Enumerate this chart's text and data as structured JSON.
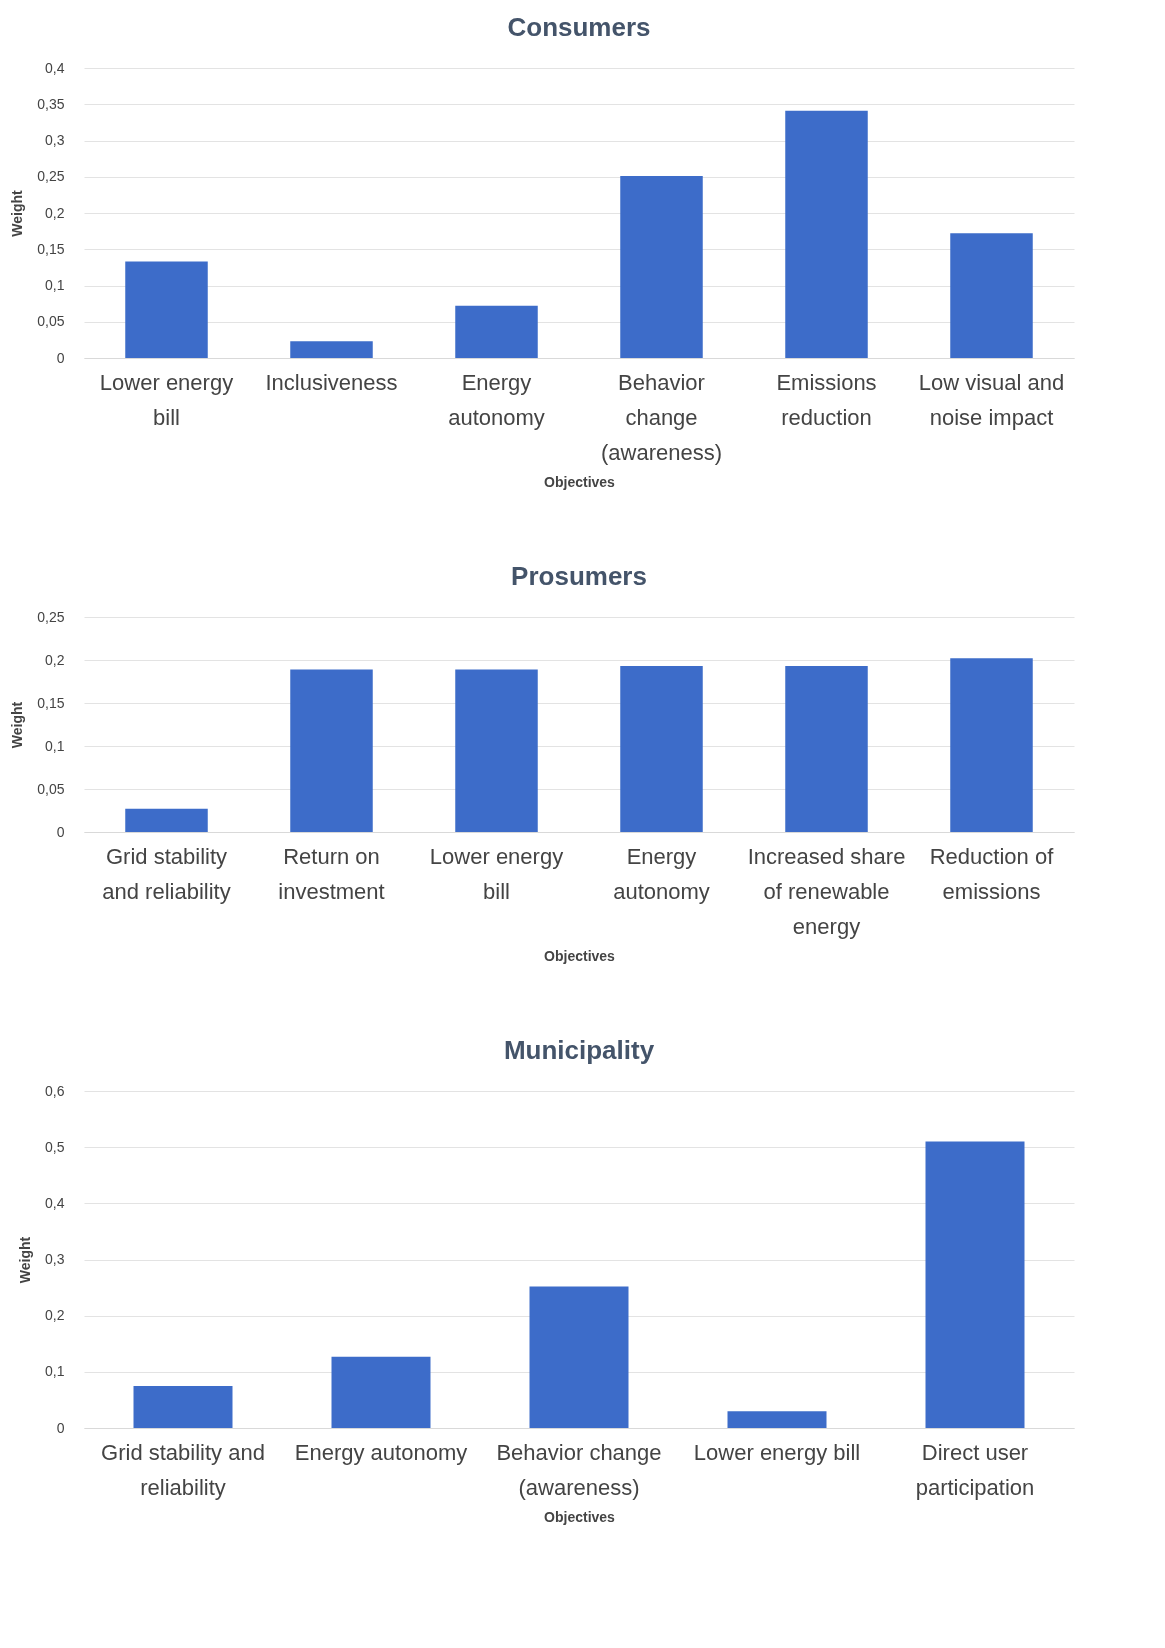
{
  "chart_data": [
    {
      "type": "bar",
      "title": "Consumers",
      "xlabel": "Objectives",
      "ylabel": "Weight",
      "categories": [
        "Lower energy bill",
        "Inclusiveness",
        "Energy autonomy",
        "Behavior change (awareness)",
        "Emissions reduction",
        "Low visual and noise impact"
      ],
      "values": [
        0.133,
        0.023,
        0.072,
        0.251,
        0.341,
        0.172
      ],
      "color": "#3d6cc9",
      "ylim": [
        0,
        0.4
      ],
      "yticks": [
        {
          "value": 0,
          "label": "0"
        },
        {
          "value": 0.05,
          "label": "0,05"
        },
        {
          "value": 0.1,
          "label": "0,1"
        },
        {
          "value": 0.15,
          "label": "0,15"
        },
        {
          "value": 0.2,
          "label": "0,2"
        },
        {
          "value": 0.25,
          "label": "0,25"
        },
        {
          "value": 0.3,
          "label": "0,3"
        },
        {
          "value": 0.35,
          "label": "0,35"
        },
        {
          "value": 0.4,
          "label": "0,4"
        }
      ],
      "grid": "y"
    },
    {
      "type": "bar",
      "title": "Prosumers",
      "xlabel": "Objectives",
      "ylabel": "Weight",
      "categories": [
        "Grid stability and reliability",
        "Return on investment",
        "Lower energy bill",
        "Energy autonomy",
        "Increased share of renewable energy",
        "Reduction of emissions"
      ],
      "values": [
        0.027,
        0.189,
        0.189,
        0.193,
        0.193,
        0.202
      ],
      "color": "#3d6cc9",
      "ylim": [
        0,
        0.25
      ],
      "yticks": [
        {
          "value": 0,
          "label": "0"
        },
        {
          "value": 0.05,
          "label": "0,05"
        },
        {
          "value": 0.1,
          "label": "0,1"
        },
        {
          "value": 0.15,
          "label": "0,15"
        },
        {
          "value": 0.2,
          "label": "0,2"
        },
        {
          "value": 0.25,
          "label": "0,25"
        }
      ],
      "grid": "y"
    },
    {
      "type": "bar",
      "title": "Municipality",
      "xlabel": "Objectives",
      "ylabel": "Weight",
      "categories": [
        "Grid stability and reliability",
        "Energy autonomy",
        "Behavior change (awareness)",
        "Lower energy bill",
        "Direct user participation"
      ],
      "values": [
        0.075,
        0.127,
        0.252,
        0.03,
        0.51
      ],
      "color": "#3d6cc9",
      "ylim": [
        0,
        0.6
      ],
      "yticks": [
        {
          "value": 0,
          "label": "0"
        },
        {
          "value": 0.1,
          "label": "0,1"
        },
        {
          "value": 0.2,
          "label": "0,2"
        },
        {
          "value": 0.3,
          "label": "0,3"
        },
        {
          "value": 0.4,
          "label": "0,4"
        },
        {
          "value": 0.5,
          "label": "0,5"
        },
        {
          "value": 0.6,
          "label": "0,6"
        }
      ],
      "grid": "y"
    }
  ]
}
